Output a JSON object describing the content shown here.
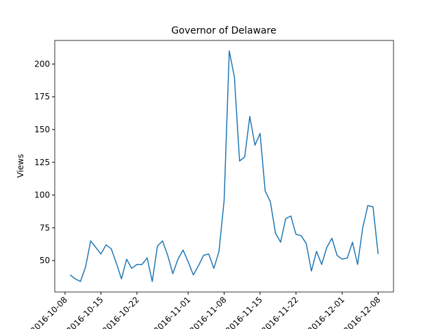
{
  "chart_data": {
    "type": "line",
    "title": "Governor of Delaware",
    "y_label": "Views",
    "x": [
      "2016-10-09",
      "2016-10-10",
      "2016-10-11",
      "2016-10-12",
      "2016-10-13",
      "2016-10-14",
      "2016-10-15",
      "2016-10-16",
      "2016-10-17",
      "2016-10-18",
      "2016-10-19",
      "2016-10-20",
      "2016-10-21",
      "2016-10-22",
      "2016-10-23",
      "2016-10-24",
      "2016-10-25",
      "2016-10-26",
      "2016-10-27",
      "2016-10-28",
      "2016-10-29",
      "2016-10-30",
      "2016-10-31",
      "2016-11-01",
      "2016-11-02",
      "2016-11-03",
      "2016-11-04",
      "2016-11-05",
      "2016-11-06",
      "2016-11-07",
      "2016-11-08",
      "2016-11-09",
      "2016-11-10",
      "2016-11-11",
      "2016-11-12",
      "2016-11-13",
      "2016-11-14",
      "2016-11-15",
      "2016-11-16",
      "2016-11-17",
      "2016-11-18",
      "2016-11-19",
      "2016-11-20",
      "2016-11-21",
      "2016-11-22",
      "2016-11-23",
      "2016-11-24",
      "2016-11-25",
      "2016-11-26",
      "2016-11-27",
      "2016-11-28",
      "2016-11-29",
      "2016-11-30",
      "2016-12-01",
      "2016-12-02",
      "2016-12-03",
      "2016-12-04",
      "2016-12-05",
      "2016-12-06",
      "2016-12-07",
      "2016-12-08"
    ],
    "series": [
      {
        "name": "Views",
        "color": "#1f77b4",
        "values": [
          39,
          36,
          34,
          45,
          65,
          60,
          55,
          62,
          59,
          48,
          36,
          51,
          44,
          47,
          47,
          52,
          34,
          61,
          65,
          54,
          40,
          51,
          58,
          49,
          39,
          46,
          54,
          55,
          44,
          57,
          96,
          210,
          190,
          126,
          129,
          160,
          138,
          147,
          103,
          95,
          71,
          64,
          82,
          84,
          70,
          69,
          63,
          42,
          57,
          47,
          60,
          67,
          54,
          51,
          52,
          64,
          47,
          75,
          92,
          91,
          55
        ]
      }
    ],
    "xlim": [
      "2016-10-06",
      "2016-12-11"
    ],
    "xticks": [
      "2016-10-08",
      "2016-10-15",
      "2016-10-22",
      "2016-11-01",
      "2016-11-08",
      "2016-11-15",
      "2016-11-22",
      "2016-12-01",
      "2016-12-08"
    ],
    "ylim": [
      26,
      218
    ],
    "yticks": [
      50,
      75,
      100,
      125,
      150,
      175,
      200
    ],
    "grid": false
  }
}
